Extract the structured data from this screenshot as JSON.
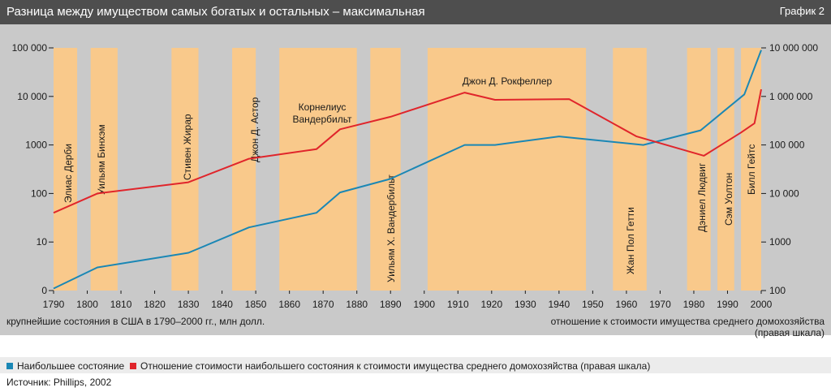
{
  "header": {
    "title": "Разница между имуществом самых богатых и остальных – максимальная",
    "badge": "График 2"
  },
  "axis_notes": {
    "left": "крупнейшие состояния в США в 1790–2000 гг., млн долл.",
    "right_line1": "отношение к стоимости имущества среднего домохозяйства",
    "right_line2": "(правая шкала)"
  },
  "legend": {
    "s1": "Наибольшее состояние",
    "s2": "Отношение стоимости наибольшего состояния к стоимости имущества среднего домохозяйства (правая шкала)"
  },
  "source": "Источник: Phillips, 2002",
  "colors": {
    "blue": "#1a87b5",
    "red": "#e0252b",
    "band": "#f9c98b",
    "bg": "#c9c9c9",
    "header": "#4e4e4e"
  },
  "chart_data": {
    "type": "line",
    "x_range": [
      1790,
      2000
    ],
    "x_ticks": [
      1790,
      1800,
      1810,
      1820,
      1830,
      1840,
      1850,
      1860,
      1870,
      1880,
      1890,
      1900,
      1910,
      1920,
      1930,
      1940,
      1950,
      1960,
      1970,
      1980,
      1990,
      2000
    ],
    "y_left": {
      "scale": "log",
      "range": [
        1,
        100000
      ],
      "ticks": [
        {
          "v": 1,
          "label": "0"
        },
        {
          "v": 10,
          "label": "10"
        },
        {
          "v": 100,
          "label": "100"
        },
        {
          "v": 1000,
          "label": "1000"
        },
        {
          "v": 10000,
          "label": "10 000"
        },
        {
          "v": 100000,
          "label": "100 000"
        }
      ]
    },
    "y_right": {
      "scale": "log",
      "range": [
        100,
        10000000
      ],
      "ticks": [
        {
          "v": 100,
          "label": "100"
        },
        {
          "v": 1000,
          "label": "1000"
        },
        {
          "v": 10000,
          "label": "10 000"
        },
        {
          "v": 100000,
          "label": "100 000"
        },
        {
          "v": 1000000,
          "label": "1 000 000"
        },
        {
          "v": 10000000,
          "label": "10 000 000"
        }
      ]
    },
    "grid": false,
    "series": [
      {
        "name": "Наибольшее состояние",
        "axis": "left",
        "color": "#1a87b5",
        "points": [
          [
            1790,
            1.1
          ],
          [
            1803,
            3
          ],
          [
            1830,
            6
          ],
          [
            1848,
            20
          ],
          [
            1868,
            40
          ],
          [
            1875,
            105
          ],
          [
            1890,
            200
          ],
          [
            1912,
            1000
          ],
          [
            1921,
            1000
          ],
          [
            1940,
            1500
          ],
          [
            1965,
            1000
          ],
          [
            1982,
            2000
          ],
          [
            1995,
            11000
          ],
          [
            2000,
            90000
          ]
        ]
      },
      {
        "name": "Отношение стоимости наибольшего состояния к стоимости имущества среднего домохозяйства (правая шкала)",
        "axis": "right",
        "color": "#e0252b",
        "points": [
          [
            1790,
            4000
          ],
          [
            1803,
            10000
          ],
          [
            1830,
            17000
          ],
          [
            1848,
            52000
          ],
          [
            1868,
            82000
          ],
          [
            1875,
            210000
          ],
          [
            1890,
            380000
          ],
          [
            1912,
            1200000
          ],
          [
            1921,
            850000
          ],
          [
            1943,
            880000
          ],
          [
            1963,
            150000
          ],
          [
            1983,
            60000
          ],
          [
            1994,
            180000
          ],
          [
            1998,
            280000
          ],
          [
            2000,
            1400000
          ]
        ]
      }
    ],
    "periods": [
      {
        "from": 1790,
        "to": 1797,
        "label": "Элиас Дерби"
      },
      {
        "from": 1801,
        "to": 1809,
        "label": "Уильям Бинхэм"
      },
      {
        "from": 1825,
        "to": 1833,
        "label": "Стивен Жирар"
      },
      {
        "from": 1843,
        "to": 1850,
        "label": "Джон Д. Астор"
      },
      {
        "from": 1857,
        "to": 1880,
        "label": "Корнелиус Вандербильт"
      },
      {
        "from": 1884,
        "to": 1893,
        "label": "Уильям Х. Вандербильт"
      },
      {
        "from": 1901,
        "to": 1948,
        "label": "Джон Д. Рокфеллер"
      },
      {
        "from": 1956,
        "to": 1966,
        "label": "Жан Пол Гетти"
      },
      {
        "from": 1978,
        "to": 1985,
        "label": "Дэниел Людвиг"
      },
      {
        "from": 1987,
        "to": 1992,
        "label": "Сэм Уолтон"
      },
      {
        "from": 1994,
        "to": 2000,
        "label": "Билл Гейтс"
      }
    ]
  }
}
